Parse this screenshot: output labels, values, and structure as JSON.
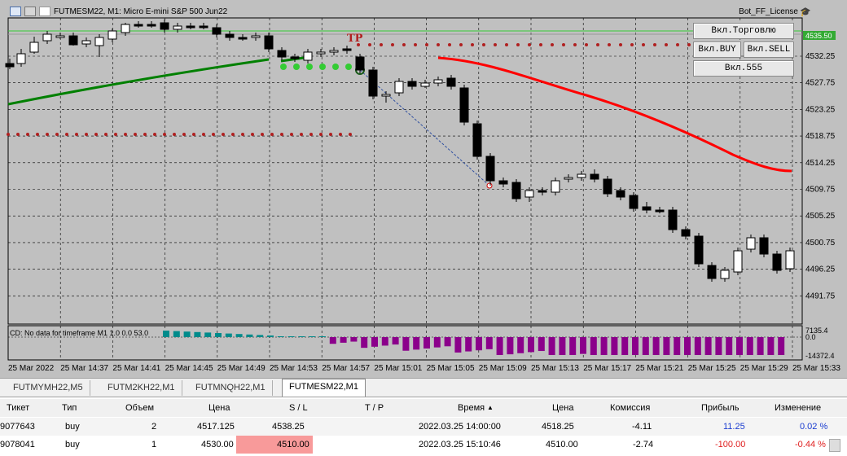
{
  "chart": {
    "title": "FUTMESM22, M1:  Micro E-mini S&P 500 Jun22",
    "ea_name": "Bot_FF_License",
    "indicator_text": "CD: No data for timeframe M1 1.0 0.0 53.0",
    "indicator_high": "7135.4",
    "indicator_zero": "0.0",
    "indicator_low": "-14372.4",
    "tp_label": "TP",
    "current_price_label": "4535.50",
    "price_labels": [
      "4532.25",
      "4527.75",
      "4523.25",
      "4518.75",
      "4514.25",
      "4509.75",
      "4505.25",
      "4500.75",
      "4496.25",
      "4491.75"
    ],
    "time_labels": [
      "25 Mar 2022",
      "25 Mar 14:37",
      "25 Mar 14:41",
      "25 Mar 14:45",
      "25 Mar 14:49",
      "25 Mar 14:53",
      "25 Mar 14:57",
      "25 Mar 15:01",
      "25 Mar 15:05",
      "25 Mar 15:09",
      "25 Mar 15:13",
      "25 Mar 15:17",
      "25 Mar 15:21",
      "25 Mar 15:25",
      "25 Mar 15:29",
      "25 Mar 15:33"
    ],
    "buttons": {
      "trade": "Вкл.Торговлю",
      "buy": "Вкл.BUY",
      "sell": "Вкл.SELL",
      "five": "Вкл.555"
    },
    "colors": {
      "bg": "#c0c0c0",
      "bull": "#ffffff",
      "bear": "#000000",
      "ma_green": "#008000",
      "ma_red": "#ff0000",
      "dots_red": "#b02020",
      "dots_green": "#33cc33",
      "hist_teal": "#008b8b",
      "hist_purple": "#8b008b"
    }
  },
  "tabs": [
    "FUTMYMH22,M5",
    "FUTM2KH22,M1",
    "FUTMNQH22,M1",
    "FUTMESM22,M1"
  ],
  "active_tab": "FUTMESM22,M1",
  "table": {
    "headers": [
      "Тикет",
      "Тип",
      "Объем",
      "Цена",
      "S / L",
      "T / P",
      "Время",
      "Цена",
      "Комиссия",
      "Прибыль",
      "Изменение"
    ],
    "sort_icon": "sort-ascending-icon",
    "rows": [
      [
        "9077643",
        "buy",
        "2",
        "4517.125",
        "4538.25",
        "",
        "2022.03.25 14:00:00",
        "4518.25",
        "-4.11",
        "11.25",
        "0.02 %"
      ],
      [
        "9078041",
        "buy",
        "1",
        "4530.00",
        "4510.00",
        "",
        "2022.03.25 15:10:46",
        "4510.00",
        "-2.74",
        "-100.00",
        "-0.44 %"
      ]
    ]
  }
}
